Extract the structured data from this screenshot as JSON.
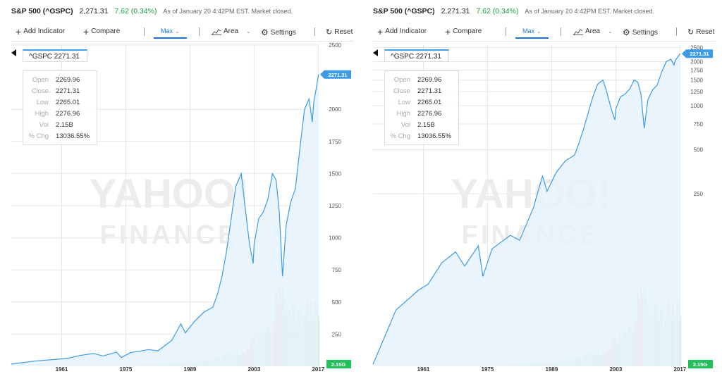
{
  "header": {
    "symbol": "S&P 500 (^GSPC)",
    "price": "2,271.31",
    "change": "7.62 (0.34%)",
    "as_of": "As of January 20 4:42PM EST. Market closed."
  },
  "toolbar": {
    "add_indicator": "Add Indicator",
    "compare": "Compare",
    "range": "Max",
    "chart_type": "Area",
    "settings": "Settings",
    "reset": "Reset"
  },
  "tooltip": {
    "symbol_label": "^GSPC 2271.31",
    "rows": [
      {
        "k": "Open",
        "v": "2269.96"
      },
      {
        "k": "Close",
        "v": "2271.31"
      },
      {
        "k": "Low",
        "v": "2265.01"
      },
      {
        "k": "High",
        "v": "2276.96"
      },
      {
        "k": "Vol",
        "v": "2.15B"
      },
      {
        "k": "% Chg",
        "v": "13036.55%"
      }
    ]
  },
  "watermark": {
    "line1": "YAHOO!",
    "line2": "FINANCE"
  },
  "colors": {
    "line": "#3b9be6",
    "fill": "#e6f2fc",
    "vol_up": "#b9ecd2",
    "vol_down": "#f5b8c0",
    "badge": "#3b9be6",
    "vol_badge": "#22c05a"
  },
  "chart_data": [
    {
      "type": "area",
      "scale": "linear",
      "title": "S&P 500 (^GSPC) Max",
      "xlabel": "",
      "ylabel": "",
      "x_ticks": [
        "1961",
        "1975",
        "1989",
        "2003",
        "2017"
      ],
      "y_ticks": [
        250,
        500,
        750,
        1000,
        1250,
        1500,
        1750,
        2000,
        2500
      ],
      "ylim": [
        0,
        2500
      ],
      "xlim": [
        1950,
        2017.1
      ],
      "last_price_label": "2271.31",
      "volume_label": "2.15G",
      "series": [
        {
          "name": "^GSPC",
          "x": [
            1950,
            1955,
            1960,
            1962,
            1965,
            1968,
            1970,
            1973,
            1974,
            1976,
            1980,
            1982,
            1985,
            1987,
            1988,
            1990,
            1992,
            1994,
            1995,
            1996,
            1997,
            1998,
            1999,
            2000.2,
            2001,
            2002,
            2002.8,
            2003,
            2004,
            2005,
            2006,
            2007,
            2007.8,
            2008.5,
            2009.2,
            2010,
            2011,
            2012,
            2013,
            2014,
            2015,
            2015.7,
            2016,
            2016.5,
            2017.05
          ],
          "values": [
            17,
            40,
            55,
            60,
            84,
            100,
            80,
            110,
            68,
            105,
            130,
            120,
            200,
            330,
            260,
            350,
            420,
            460,
            560,
            700,
            900,
            1150,
            1400,
            1500,
            1250,
            950,
            800,
            950,
            1150,
            1200,
            1300,
            1500,
            1450,
            1200,
            700,
            1100,
            1280,
            1380,
            1700,
            2000,
            2080,
            1900,
            2050,
            2150,
            2271
          ]
        }
      ]
    },
    {
      "type": "area",
      "scale": "log",
      "title": "S&P 500 (^GSPC) Max",
      "xlabel": "",
      "ylabel": "",
      "x_ticks": [
        "1961",
        "1975",
        "1989",
        "2003",
        "2017"
      ],
      "y_ticks": [
        250,
        500,
        750,
        1000,
        1250,
        1500,
        1750,
        2000,
        2500
      ],
      "ylim": [
        16.5,
        2600
      ],
      "xlim": [
        1950,
        2017.1
      ],
      "last_price_label": "2271.31",
      "volume_label": "2.15G",
      "series": [
        {
          "name": "^GSPC",
          "x": [
            1950,
            1955,
            1960,
            1962,
            1965,
            1968,
            1970,
            1973,
            1974,
            1976,
            1980,
            1982,
            1985,
            1987,
            1988,
            1990,
            1992,
            1994,
            1995,
            1996,
            1997,
            1998,
            1999,
            2000.2,
            2001,
            2002,
            2002.8,
            2003,
            2004,
            2005,
            2006,
            2007,
            2007.8,
            2008.5,
            2009.2,
            2010,
            2011,
            2012,
            2013,
            2014,
            2015,
            2015.7,
            2016,
            2016.5,
            2017.05
          ],
          "values": [
            17,
            40,
            55,
            60,
            84,
            100,
            80,
            110,
            68,
            105,
            130,
            120,
            200,
            330,
            260,
            350,
            420,
            460,
            560,
            700,
            900,
            1150,
            1400,
            1500,
            1250,
            950,
            800,
            950,
            1150,
            1200,
            1300,
            1500,
            1450,
            1200,
            700,
            1100,
            1280,
            1380,
            1700,
            2000,
            2080,
            1900,
            2050,
            2150,
            2271
          ]
        }
      ]
    }
  ]
}
